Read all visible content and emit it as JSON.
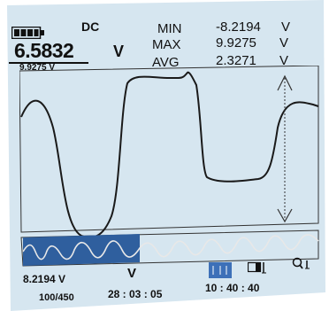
{
  "header": {
    "battery_icon": "battery-icon",
    "coupling": "DC",
    "main_reading": "6.5832",
    "main_unit": "V",
    "sub_reading": "9.9275 V"
  },
  "stats": {
    "rows": [
      {
        "label": "MIN",
        "value": "-8.2194",
        "unit": "V"
      },
      {
        "label": "MAX",
        "value": "9.9275",
        "unit": "V"
      },
      {
        "label": "AVG",
        "value": "2.3271",
        "unit": "V"
      }
    ]
  },
  "footer": {
    "cursor_reading": "8.2194 V",
    "cursor_unit": "V",
    "record_count": "100/450",
    "elapsed_time": "28 : 03 : 05",
    "clock_time": "10 : 40 : 40",
    "icons": [
      "cursor-mode-icon",
      "battery-small-icon",
      "zoom-icon"
    ]
  },
  "colors": {
    "screen_bg": "#d6e6f0",
    "trace": "#1a1a1a",
    "overview_highlight": "#2f5f9e",
    "icon_active": "#3d70b8"
  }
}
